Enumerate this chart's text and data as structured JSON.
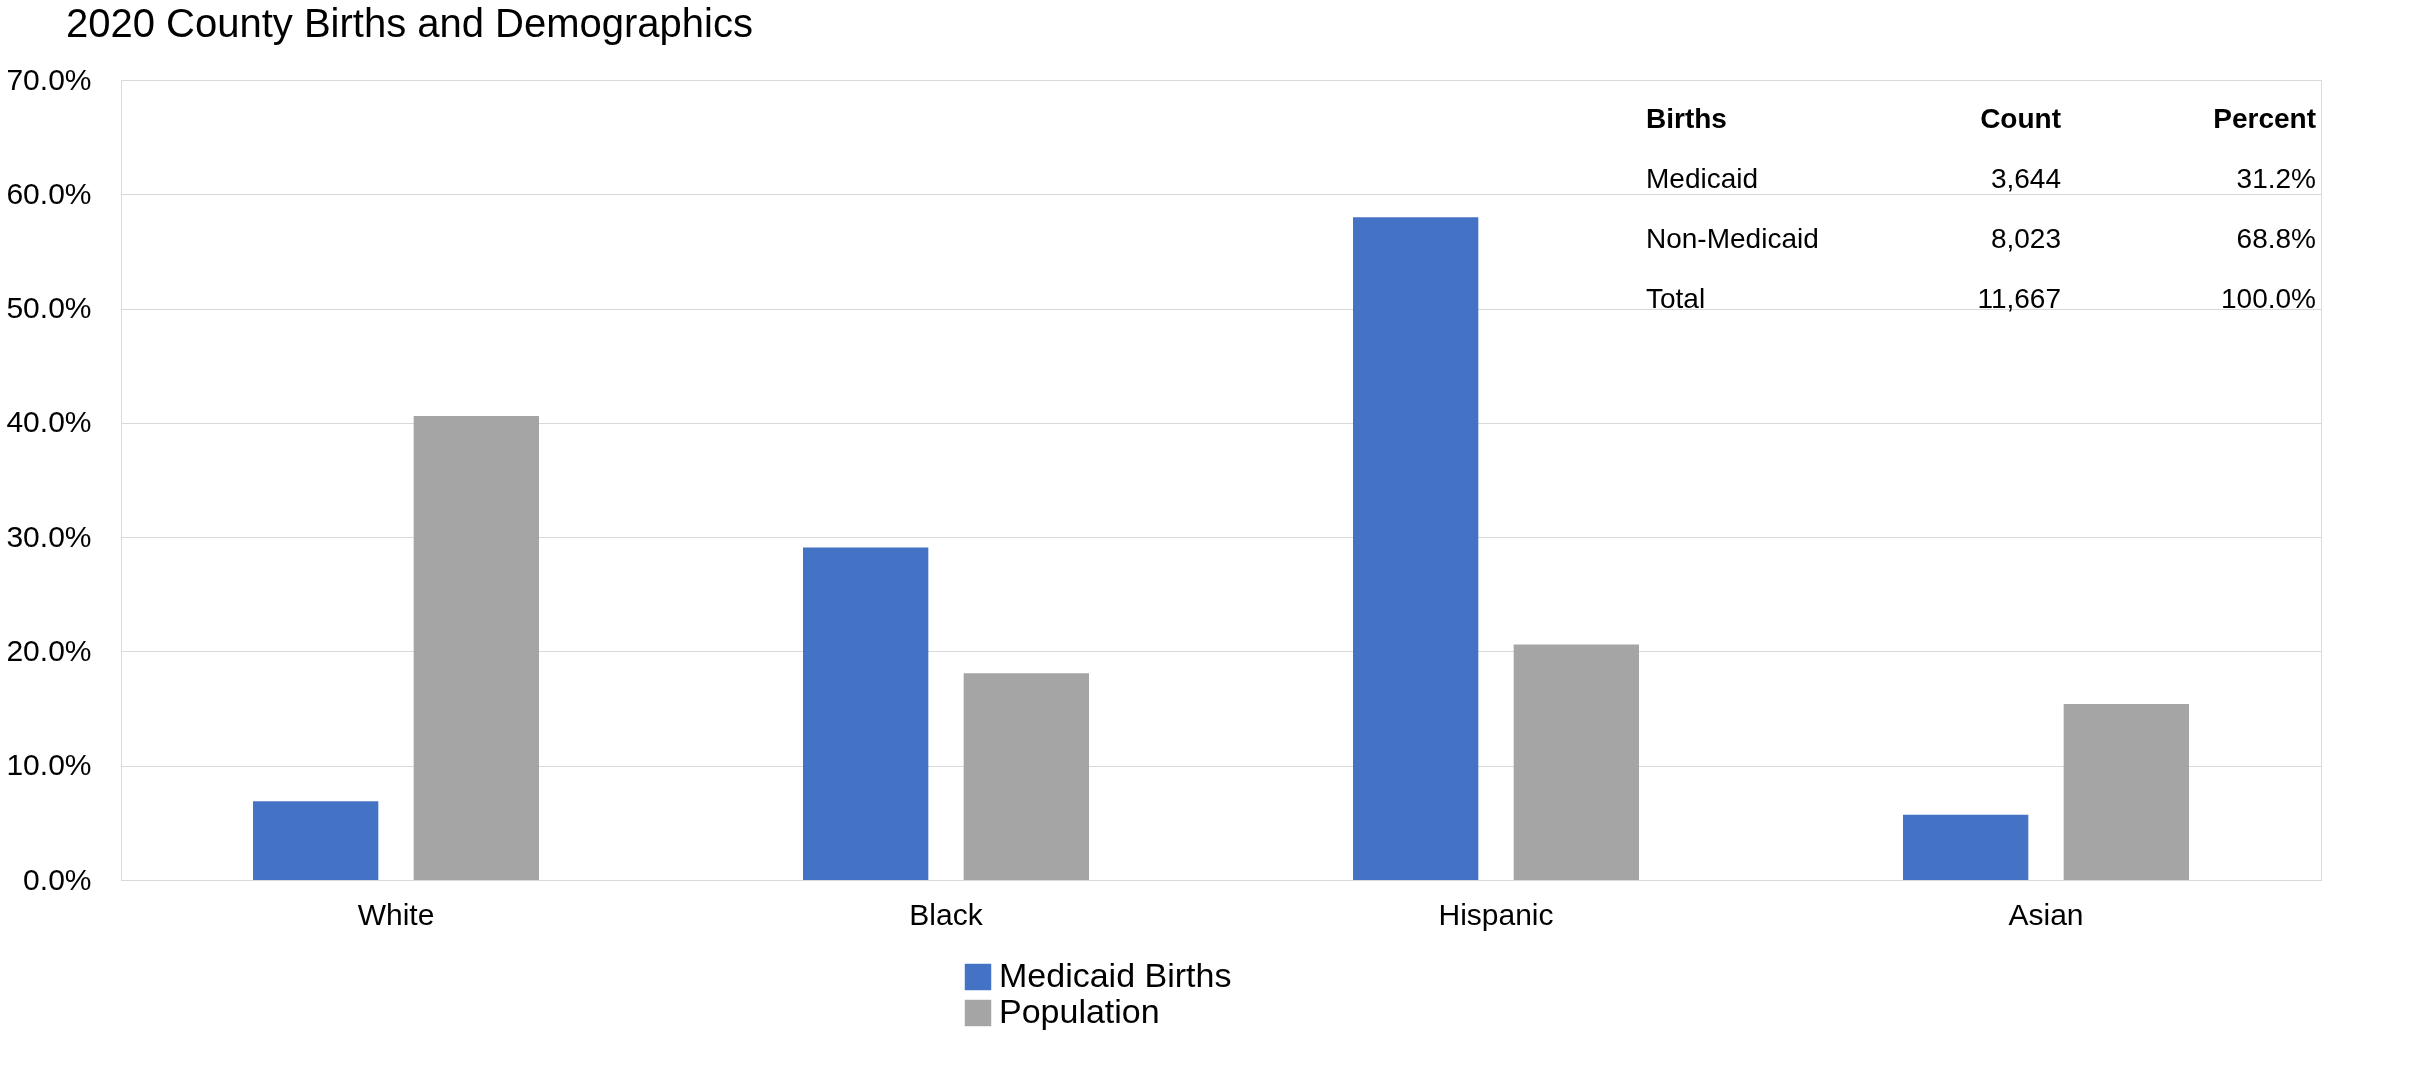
{
  "chart_data": {
    "type": "bar",
    "title": "2020 County Births and Demographics",
    "categories": [
      "White",
      "Black",
      "Hispanic",
      "Asian"
    ],
    "series": [
      {
        "name": "Medicaid Births",
        "color": "#4472c4",
        "values": [
          6.9,
          29.1,
          58.0,
          5.7
        ]
      },
      {
        "name": "Population",
        "color": "#a5a5a5",
        "values": [
          40.6,
          18.1,
          20.6,
          15.4
        ]
      }
    ],
    "ylim": [
      0,
      70
    ],
    "yticks": [
      {
        "value": 0,
        "label": "0.0%"
      },
      {
        "value": 10,
        "label": "10.0%"
      },
      {
        "value": 20,
        "label": "20.0%"
      },
      {
        "value": 30,
        "label": "30.0%"
      },
      {
        "value": 40,
        "label": "40.0%"
      },
      {
        "value": 50,
        "label": "50.0%"
      },
      {
        "value": 60,
        "label": "60.0%"
      },
      {
        "value": 70,
        "label": "70.0%"
      }
    ],
    "grid": "y",
    "legend": "bottom",
    "annotations": [
      "Births",
      "Count",
      "Percent",
      "Medicaid",
      "3,644",
      "31.2%",
      "Non-Medicaid",
      "8,023",
      "68.8%",
      "Total",
      "11,667",
      "100.0%"
    ]
  }
}
